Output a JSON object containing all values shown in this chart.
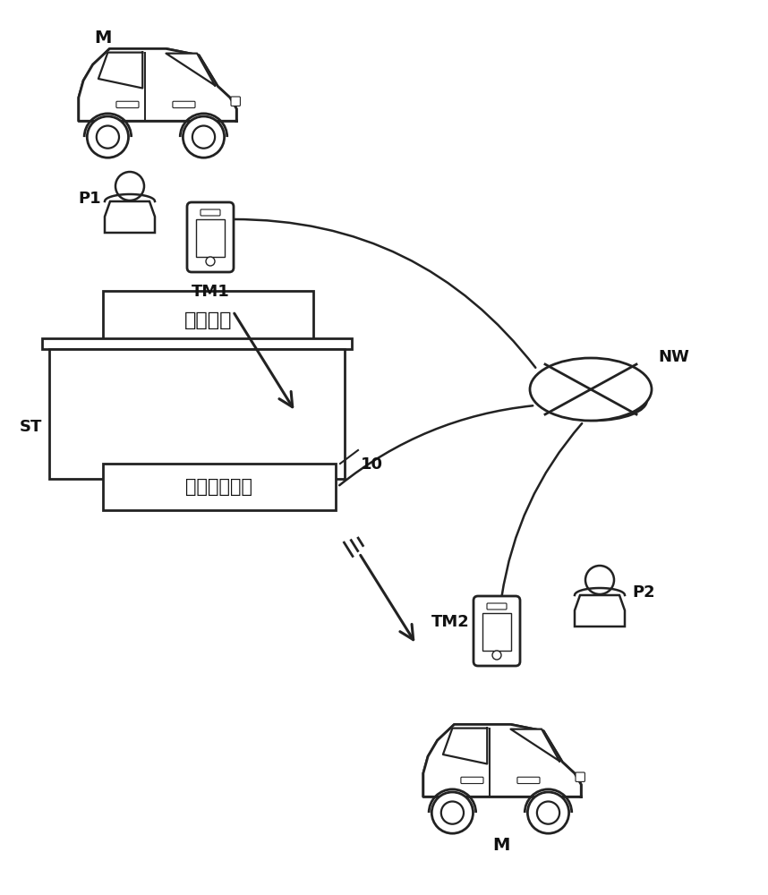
{
  "background_color": "#ffffff",
  "fig_width": 8.58,
  "fig_height": 10.0,
  "labels": {
    "M_top": "M",
    "P1": "P1",
    "TM1": "TM1",
    "ST": "ST",
    "car_sharing": "车辆共享",
    "fee_device": "费用决定装置",
    "label_10": "10",
    "NW": "NW",
    "TM2": "TM2",
    "P2": "P2",
    "M_bottom": "M"
  },
  "line_color": "#222222",
  "text_color": "#111111"
}
